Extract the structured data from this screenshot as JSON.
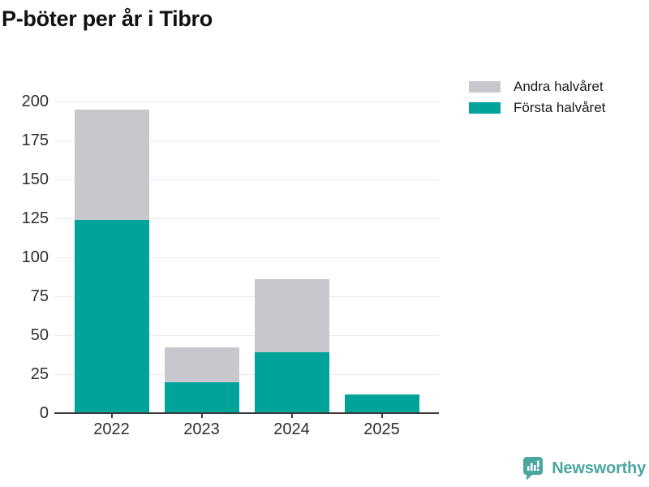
{
  "title": "P-böter per år i Tibro",
  "legend": {
    "items": [
      {
        "label": "Andra halvåret",
        "series": "Andra halvåret"
      },
      {
        "label": "Första halvåret",
        "series": "Första halvåret"
      }
    ]
  },
  "chart_data": {
    "type": "bar",
    "stacked": true,
    "title": "P-böter per år i Tibro",
    "categories": [
      "2022",
      "2023",
      "2024",
      "2025"
    ],
    "series": [
      {
        "name": "Första halvåret",
        "color": "#00a39a",
        "values": [
          124,
          20,
          39,
          12
        ]
      },
      {
        "name": "Andra halvåret",
        "color": "#c9c7ce",
        "values": [
          71,
          22,
          47,
          0
        ]
      }
    ],
    "totals": [
      195,
      42,
      86,
      12
    ],
    "xlabel": "",
    "ylabel": "",
    "ylim": [
      0,
      200
    ],
    "yticks": [
      0,
      25,
      50,
      75,
      100,
      125,
      150,
      175,
      200
    ],
    "grid": true,
    "legend_position": "top-right"
  },
  "colors": {
    "forsta": "#00a39a",
    "andra": "#c9c7ce",
    "gridline": "#e8e8e8",
    "axis": "#3a3a3a",
    "tick_text": "#2e2e2e",
    "title_text": "#111111",
    "brand_teal": "#4ba5a0"
  },
  "branding": {
    "name": "Newsworthy",
    "icon": "newsworthy-logo-icon"
  }
}
